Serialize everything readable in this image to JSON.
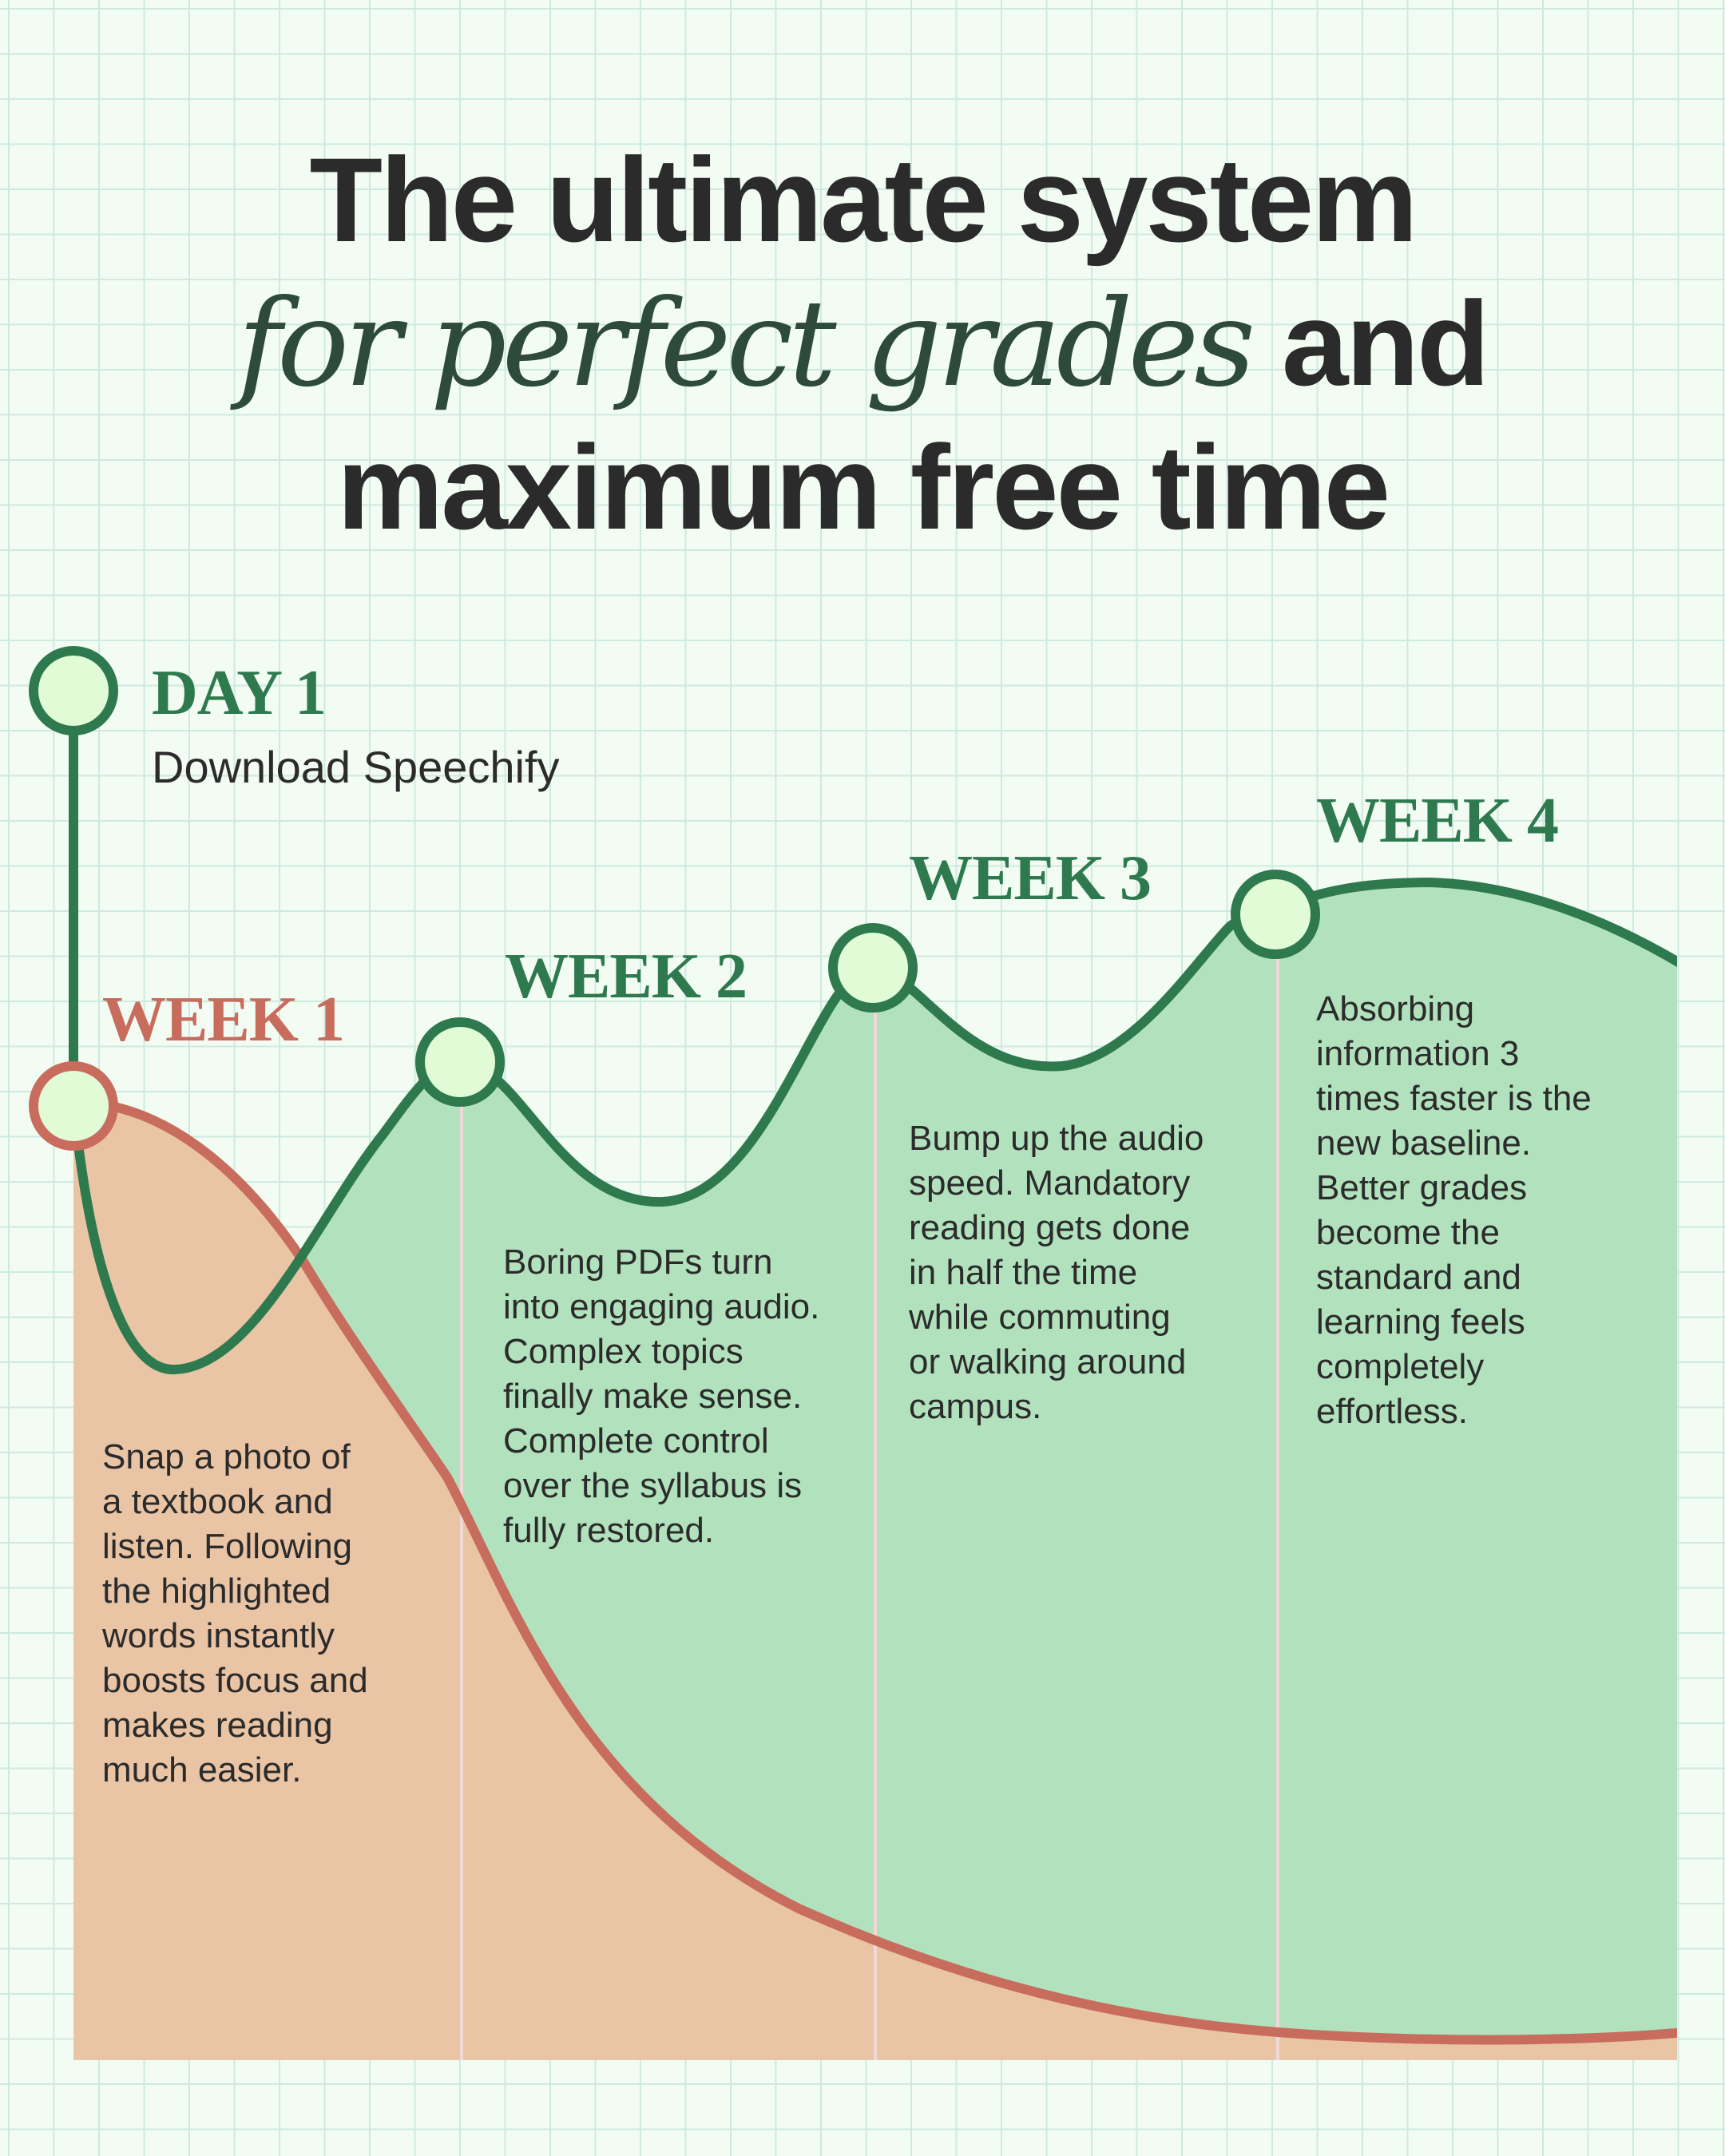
{
  "headline": {
    "line1": "The ultimate system",
    "line2_accent": "for perfect grades",
    "line2_rest": " and",
    "line3": "maximum free time"
  },
  "milestones": {
    "day1": {
      "title": "DAY 1",
      "subtitle": "Download Speechify"
    },
    "week1": {
      "title": "WEEK 1",
      "text": [
        "Snap a photo of",
        "a textbook and",
        "listen. Following",
        "the highlighted",
        "words instantly",
        "boosts focus and",
        "makes reading",
        "much easier."
      ]
    },
    "week2": {
      "title": "WEEK 2",
      "text": [
        "Boring PDFs turn",
        "into engaging audio.",
        "Complex topics",
        "finally make sense.",
        "Complete control",
        "over the syllabus is",
        "fully restored."
      ]
    },
    "week3": {
      "title": "WEEK 3",
      "text": [
        "Bump up the audio",
        "speed. Mandatory",
        "reading gets done",
        "in half the time",
        "while commuting",
        "or walking around",
        "campus."
      ]
    },
    "week4": {
      "title": "WEEK 4",
      "text": [
        "Absorbing",
        "information 3",
        "times faster is the",
        "new baseline.",
        "Better grades",
        "become the",
        "standard and",
        "learning feels",
        "completely",
        "effortless."
      ]
    }
  },
  "colors": {
    "green_line": "#2e7a4e",
    "green_fill": "#b2e2bd",
    "red_line": "#c86c5e",
    "peach_fill": "#e9c5a5",
    "marker_fill": "#e0fbd6",
    "text": "#2b2b2b"
  }
}
